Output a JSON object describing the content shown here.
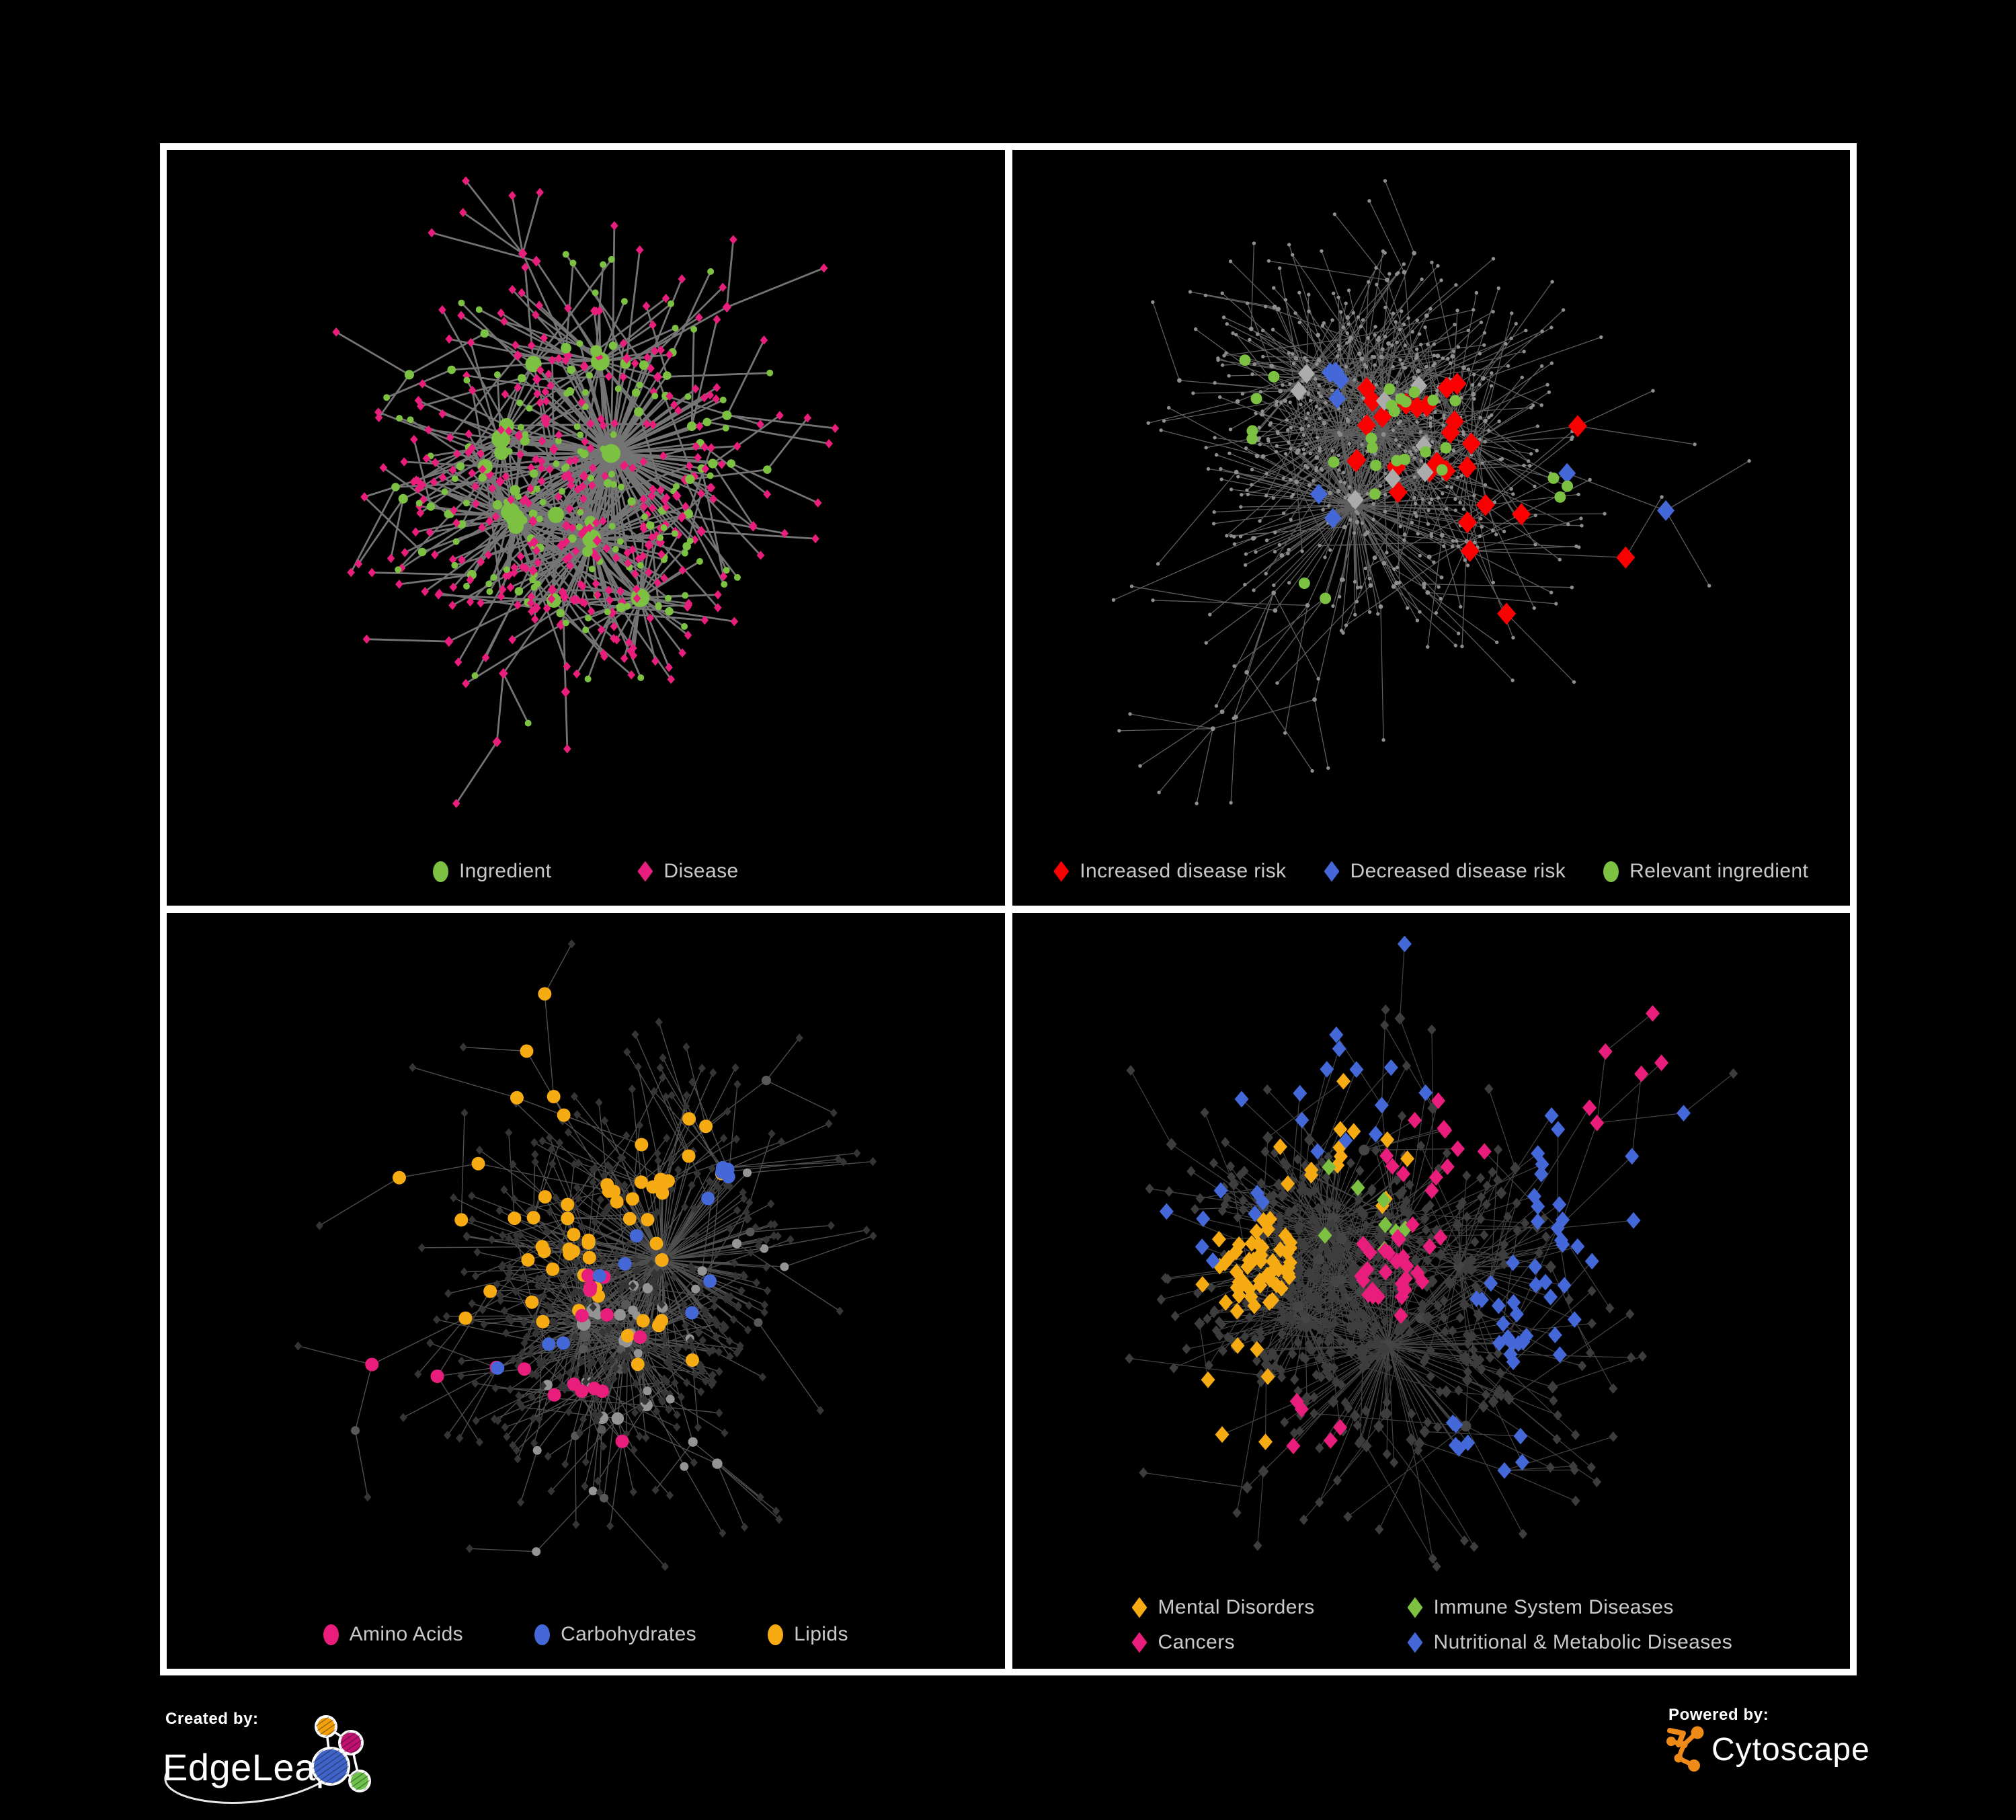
{
  "background": "#000000",
  "frame_color": "#ffffff",
  "legend_text_color": "#C9C9C9",
  "panels": [
    {
      "id": "ingredient-disease",
      "seed": 1337,
      "node_count": 560,
      "kind": "tl",
      "edge": {
        "color": "#7A7A7A",
        "width": 2.8,
        "opacity": 0.95
      },
      "palette": {
        "green": "#7CC142",
        "pink": "#E91E7C"
      },
      "highlights": [],
      "legend_class": "legend-2",
      "legend": [
        {
          "label": "Ingredient",
          "shape": "circle",
          "color": "#7CC142"
        },
        {
          "label": "Disease",
          "shape": "diamond",
          "color": "#E91E7C"
        }
      ]
    },
    {
      "id": "disease-risk",
      "seed": 4242,
      "node_count": 700,
      "kind": "dots",
      "edge": {
        "color": "#6F6F6F",
        "width": 1.3,
        "opacity": 0.85
      },
      "palette": {
        "dot": "#8E8E8E"
      },
      "highlights": [
        {
          "shape": "diamond",
          "color": "#FA0000",
          "size": 14,
          "on": "internal",
          "groups": [
            [
              0.46,
              0.4,
              0.16,
              20
            ],
            [
              0.62,
              0.52,
              0.1,
              5
            ],
            [
              0.78,
              0.74,
              0.05,
              2
            ],
            [
              0.87,
              0.28,
              0.04,
              1
            ]
          ]
        },
        {
          "shape": "diamond",
          "color": "#4468D8",
          "size": 13,
          "on": "internal",
          "groups": [
            [
              0.34,
              0.33,
              0.05,
              4
            ],
            [
              0.88,
              0.26,
              0.03,
              2
            ],
            [
              0.3,
              0.52,
              0.05,
              2
            ]
          ]
        },
        {
          "shape": "diamond",
          "color": "#ABABAB",
          "size": 12.5,
          "on": "internal",
          "groups": [
            [
              0.48,
              0.44,
              0.13,
              6
            ],
            [
              0.31,
              0.34,
              0.05,
              2
            ]
          ]
        },
        {
          "shape": "circle",
          "color": "#7CC142",
          "size": 8.5,
          "on": "any",
          "groups": [
            [
              0.45,
              0.42,
              0.18,
              18
            ],
            [
              0.2,
              0.36,
              0.14,
              5
            ],
            [
              0.74,
              0.46,
              0.12,
              3
            ],
            [
              0.3,
              0.7,
              0.1,
              2
            ]
          ]
        }
      ],
      "legend_class": "legend-3a",
      "legend": [
        {
          "label": "Increased disease risk",
          "shape": "diamond",
          "color": "#FA0000"
        },
        {
          "label": "Decreased disease risk",
          "shape": "diamond",
          "color": "#4468D8"
        },
        {
          "label": "Relevant ingredient",
          "shape": "circle",
          "color": "#7CC142"
        }
      ]
    },
    {
      "id": "nutrient-classes",
      "seed": 9001,
      "node_count": 620,
      "kind": "bl",
      "edge": {
        "color": "#9B9B9B",
        "width": 1.4,
        "opacity": 0.5
      },
      "palette": {
        "circle": "#949494",
        "circle_dark": "#585858",
        "leaf": "#353535"
      },
      "highlights": [
        {
          "shape": "circle",
          "color": "#F7AB12",
          "size": 10,
          "on": "internal",
          "groups": [
            [
              0.55,
              0.26,
              0.09,
              26
            ],
            [
              0.38,
              0.55,
              0.07,
              14
            ],
            [
              0.62,
              0.6,
              0.22,
              10
            ],
            [
              0.25,
              0.3,
              0.18,
              8
            ]
          ]
        },
        {
          "shape": "circle",
          "color": "#E91E7C",
          "size": 10,
          "on": "internal",
          "groups": [
            [
              0.28,
              0.52,
              0.28,
              12
            ],
            [
              0.6,
              0.75,
              0.18,
              5
            ]
          ]
        },
        {
          "shape": "circle",
          "color": "#4468D8",
          "size": 10,
          "on": "internal",
          "groups": [
            [
              0.47,
              0.27,
              0.09,
              8
            ],
            [
              0.2,
              0.33,
              0.14,
              3
            ],
            [
              0.75,
              0.6,
              0.1,
              2
            ]
          ]
        }
      ],
      "legend_class": "legend-3b",
      "legend": [
        {
          "label": "Amino Acids",
          "shape": "circle",
          "color": "#E91E7C"
        },
        {
          "label": "Carbohydrates",
          "shape": "circle",
          "color": "#4468D8"
        },
        {
          "label": "Lipids",
          "shape": "circle",
          "color": "#F7AB12"
        }
      ]
    },
    {
      "id": "disease-categories",
      "seed": 2718,
      "node_count": 720,
      "kind": "br",
      "edge": {
        "color": "#A0A0A0",
        "width": 1.2,
        "opacity": 0.42
      },
      "palette": {
        "diamond": "#3D3D3D",
        "hub": "#454545"
      },
      "highlights": [
        {
          "shape": "diamond",
          "color": "#F7AB12",
          "size": 10.5,
          "on": "any",
          "groups": [
            [
              0.2,
              0.52,
              0.08,
              52
            ],
            [
              0.35,
              0.3,
              0.28,
              14
            ],
            [
              0.15,
              0.74,
              0.09,
              6
            ]
          ]
        },
        {
          "shape": "diamond",
          "color": "#7CC142",
          "size": 10.5,
          "on": "any",
          "groups": [
            [
              0.42,
              0.42,
              0.28,
              8
            ]
          ]
        },
        {
          "shape": "diamond",
          "color": "#E91E7C",
          "size": 10.5,
          "on": "any",
          "groups": [
            [
              0.45,
              0.52,
              0.1,
              30
            ],
            [
              0.5,
              0.35,
              0.14,
              12
            ],
            [
              0.84,
              0.2,
              0.05,
              6
            ],
            [
              0.3,
              0.8,
              0.18,
              5
            ]
          ]
        },
        {
          "shape": "diamond",
          "color": "#4468D8",
          "size": 10.5,
          "on": "any",
          "groups": [
            [
              0.66,
              0.6,
              0.07,
              24
            ],
            [
              0.3,
              0.1,
              0.22,
              14
            ],
            [
              0.82,
              0.35,
              0.11,
              18
            ],
            [
              0.6,
              0.85,
              0.13,
              8
            ],
            [
              0.15,
              0.45,
              0.18,
              8
            ]
          ]
        }
      ],
      "legend_class": "legend-grid",
      "legend": [
        {
          "label": "Mental Disorders",
          "shape": "diamond",
          "color": "#F7AB12"
        },
        {
          "label": "Immune System Diseases",
          "shape": "diamond",
          "color": "#7CC142"
        },
        {
          "label": "Cancers",
          "shape": "diamond",
          "color": "#E91E7C"
        },
        {
          "label": "Nutritional & Metabolic Diseases",
          "shape": "diamond",
          "color": "#4468D8"
        }
      ]
    }
  ],
  "footer": {
    "created_by": "Created by:",
    "edgeleap": "EdgeLeap",
    "powered_by": "Powered by:",
    "cytoscape": "Cytoscape",
    "colors": {
      "orange": "#F2A10B",
      "magenta": "#C01070",
      "blue": "#3F63C9",
      "green": "#6CC24A",
      "cyto_orange": "#EE8A18"
    }
  }
}
